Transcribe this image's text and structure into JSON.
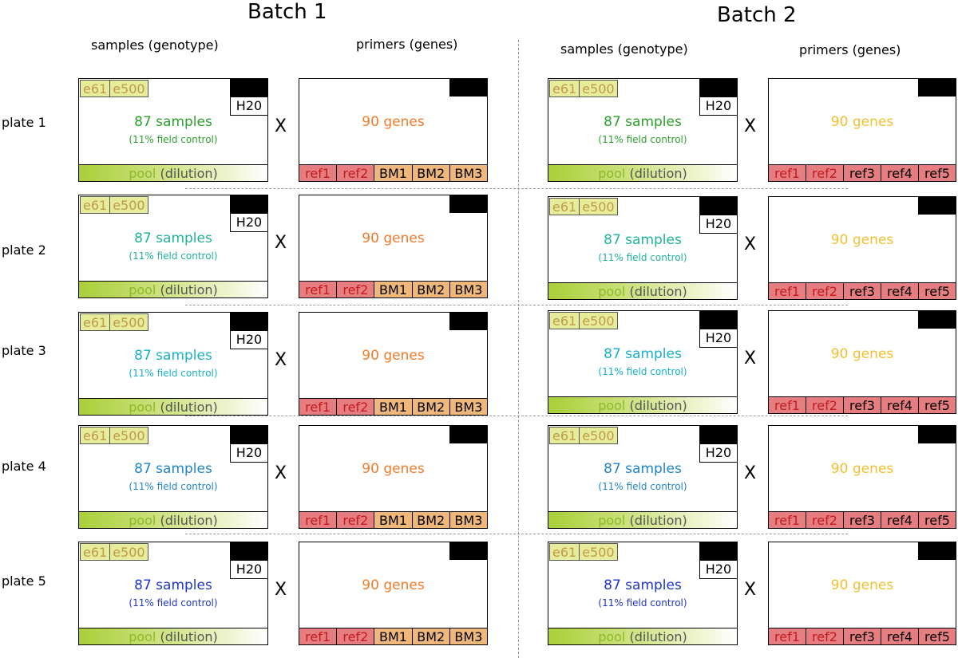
{
  "batches": [
    {
      "title": "Batch 1",
      "samples_header": "samples (genotype)",
      "primers_header": "primers (genes)"
    },
    {
      "title": "Batch 2",
      "samples_header": "samples (genotype)",
      "primers_header": "primers (genes)"
    }
  ],
  "plates": [
    {
      "label": "plate 1",
      "color": "#2ca02c"
    },
    {
      "label": "plate 2",
      "color": "#1fb39a"
    },
    {
      "label": "plate 3",
      "color": "#17b0c9"
    },
    {
      "label": "plate 4",
      "color": "#1f84c8"
    },
    {
      "label": "plate 5",
      "color": "#1f35c8"
    }
  ],
  "sample_box": {
    "controls": [
      "e61",
      "e500"
    ],
    "water": "H20",
    "samples_text": "87 samples",
    "field_control_text": "(11% field control)",
    "pool_word": "pool",
    "dilution_word": "(dilution)"
  },
  "cross_symbol": "X",
  "genes_text": "90 genes",
  "genes_colors": {
    "batch1": "#f07a2a",
    "batch2": "#f0c030"
  },
  "primers": {
    "batch1": [
      "ref1",
      "ref2",
      "BM1",
      "BM2",
      "BM3"
    ],
    "batch2": [
      "ref1",
      "ref2",
      "ref3",
      "ref4",
      "ref5"
    ]
  }
}
